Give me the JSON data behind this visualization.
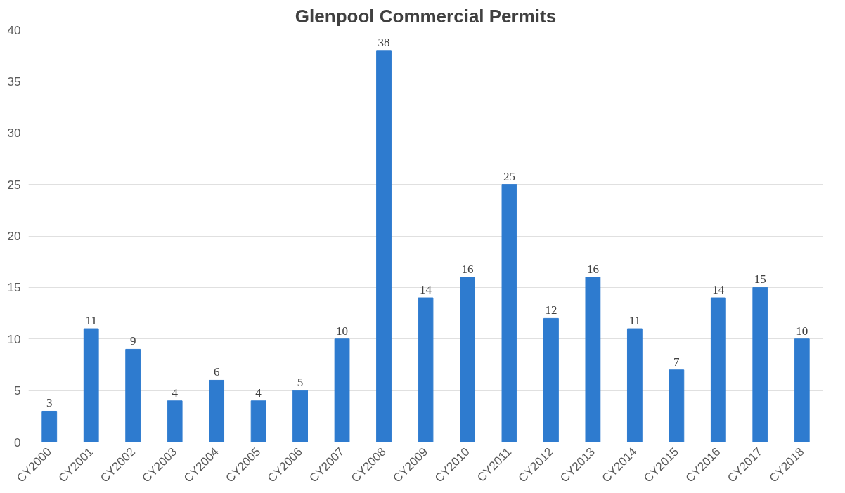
{
  "chart_data": {
    "type": "bar",
    "title": "Glenpool Commercial Permits",
    "categories": [
      "CY2000",
      "CY2001",
      "CY2002",
      "CY2003",
      "CY2004",
      "CY2005",
      "CY2006",
      "CY2007",
      "CY2008",
      "CY2009",
      "CY2010",
      "CY2011",
      "CY2012",
      "CY2013",
      "CY2014",
      "CY2015",
      "CY2016",
      "CY2017",
      "CY2018"
    ],
    "values": [
      3,
      11,
      9,
      4,
      6,
      4,
      5,
      10,
      38,
      14,
      16,
      25,
      12,
      16,
      11,
      7,
      14,
      15,
      10
    ],
    "color": "#2e7bcf",
    "ylim": [
      0,
      40
    ],
    "yticks": [
      0,
      5,
      10,
      15,
      20,
      25,
      30,
      35,
      40
    ],
    "grid": "y",
    "data_labels": true
  }
}
